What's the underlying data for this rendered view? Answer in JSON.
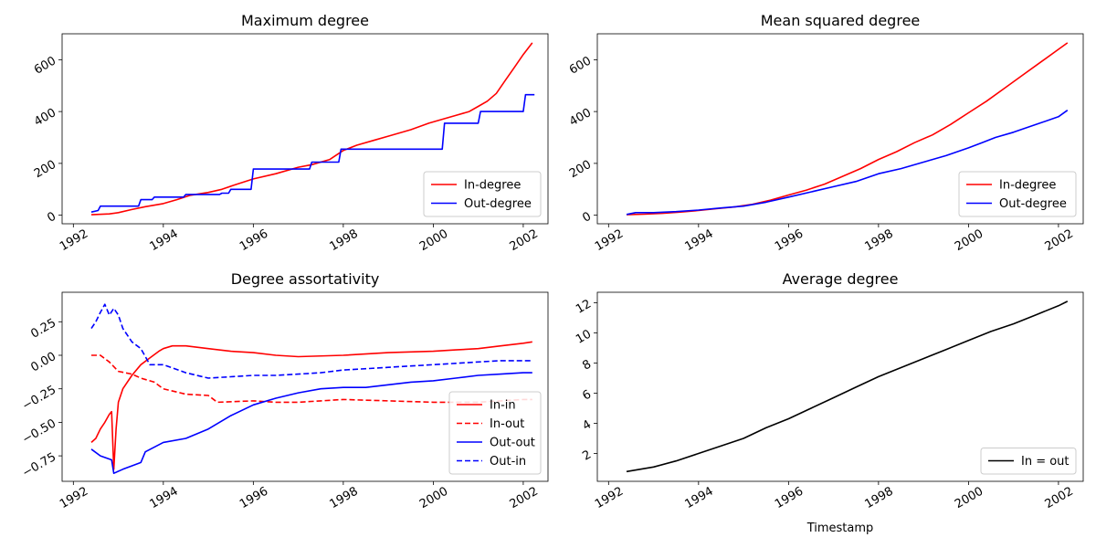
{
  "colors": {
    "red": "#ff0000",
    "blue": "#0000ff",
    "black": "#000000",
    "axis": "#000000"
  },
  "chart_data": [
    {
      "type": "line",
      "title": "Maximum degree",
      "xlabel": "",
      "ylabel": "",
      "xlim": [
        1991.75,
        2002.55
      ],
      "ylim": [
        -33,
        700
      ],
      "xticks": [
        1992,
        1994,
        1996,
        1998,
        2000,
        2002
      ],
      "yticks": [
        0,
        200,
        400,
        600
      ],
      "ytick_labels": [
        "0",
        "200",
        "400",
        "600"
      ],
      "legend": "lower-right",
      "series": [
        {
          "name": "In-degree",
          "color": "#ff0000",
          "dash": "solid",
          "points": [
            [
              1992.4,
              2
            ],
            [
              1992.8,
              5
            ],
            [
              1993.0,
              10
            ],
            [
              1993.3,
              22
            ],
            [
              1993.6,
              33
            ],
            [
              1994.0,
              45
            ],
            [
              1994.3,
              60
            ],
            [
              1994.6,
              77
            ],
            [
              1995.0,
              88
            ],
            [
              1995.3,
              100
            ],
            [
              1995.6,
              118
            ],
            [
              1996.0,
              140
            ],
            [
              1996.5,
              160
            ],
            [
              1997.0,
              185
            ],
            [
              1997.3,
              195
            ],
            [
              1997.7,
              215
            ],
            [
              1998.0,
              250
            ],
            [
              1998.3,
              270
            ],
            [
              1998.7,
              290
            ],
            [
              1999.0,
              305
            ],
            [
              1999.5,
              330
            ],
            [
              1999.9,
              355
            ],
            [
              2000.2,
              370
            ],
            [
              2000.5,
              385
            ],
            [
              2000.8,
              400
            ],
            [
              2001.0,
              420
            ],
            [
              2001.2,
              440
            ],
            [
              2001.4,
              470
            ],
            [
              2001.6,
              520
            ],
            [
              2001.8,
              570
            ],
            [
              2002.0,
              620
            ],
            [
              2002.2,
              665
            ]
          ]
        },
        {
          "name": "Out-degree",
          "color": "#0000ff",
          "dash": "solid",
          "points": [
            [
              1992.4,
              12
            ],
            [
              1992.55,
              18
            ],
            [
              1992.6,
              35
            ],
            [
              1993.45,
              35
            ],
            [
              1993.5,
              60
            ],
            [
              1993.75,
              60
            ],
            [
              1993.8,
              70
            ],
            [
              1994.45,
              70
            ],
            [
              1994.5,
              80
            ],
            [
              1995.25,
              80
            ],
            [
              1995.3,
              85
            ],
            [
              1995.45,
              85
            ],
            [
              1995.5,
              100
            ],
            [
              1995.95,
              100
            ],
            [
              1996.0,
              178
            ],
            [
              1997.25,
              178
            ],
            [
              1997.3,
              205
            ],
            [
              1997.9,
              205
            ],
            [
              1997.95,
              255
            ],
            [
              2000.2,
              255
            ],
            [
              2000.25,
              355
            ],
            [
              2001.0,
              355
            ],
            [
              2001.05,
              400
            ],
            [
              2002.0,
              400
            ],
            [
              2002.05,
              465
            ],
            [
              2002.25,
              465
            ]
          ]
        }
      ]
    },
    {
      "type": "line",
      "title": "Mean squared degree",
      "xlabel": "",
      "ylabel": "",
      "xlim": [
        1991.75,
        2002.55
      ],
      "ylim": [
        -33,
        700
      ],
      "xticks": [
        1992,
        1994,
        1996,
        1998,
        2000,
        2002
      ],
      "yticks": [
        0,
        200,
        400,
        600
      ],
      "ytick_labels": [
        "0",
        "200",
        "400",
        "600"
      ],
      "legend": "lower-right",
      "series": [
        {
          "name": "In-degree",
          "color": "#ff0000",
          "dash": "solid",
          "points": [
            [
              1992.4,
              2
            ],
            [
              1992.8,
              4
            ],
            [
              1993.2,
              7
            ],
            [
              1993.6,
              12
            ],
            [
              1994.0,
              18
            ],
            [
              1994.4,
              25
            ],
            [
              1994.8,
              32
            ],
            [
              1995.2,
              42
            ],
            [
              1995.6,
              58
            ],
            [
              1996.0,
              78
            ],
            [
              1996.4,
              97
            ],
            [
              1996.8,
              120
            ],
            [
              1997.2,
              150
            ],
            [
              1997.6,
              180
            ],
            [
              1998.0,
              215
            ],
            [
              1998.4,
              245
            ],
            [
              1998.8,
              280
            ],
            [
              1999.2,
              310
            ],
            [
              1999.6,
              350
            ],
            [
              2000.0,
              395
            ],
            [
              2000.4,
              440
            ],
            [
              2000.8,
              490
            ],
            [
              2001.2,
              540
            ],
            [
              2001.6,
              590
            ],
            [
              2002.0,
              640
            ],
            [
              2002.2,
              665
            ]
          ]
        },
        {
          "name": "Out-degree",
          "color": "#0000ff",
          "dash": "solid",
          "points": [
            [
              1992.4,
              3
            ],
            [
              1992.6,
              10
            ],
            [
              1993.0,
              10
            ],
            [
              1993.5,
              14
            ],
            [
              1994.0,
              20
            ],
            [
              1994.5,
              28
            ],
            [
              1995.0,
              35
            ],
            [
              1995.5,
              50
            ],
            [
              1996.0,
              70
            ],
            [
              1996.5,
              90
            ],
            [
              1997.0,
              110
            ],
            [
              1997.5,
              130
            ],
            [
              1998.0,
              160
            ],
            [
              1998.5,
              180
            ],
            [
              1999.0,
              205
            ],
            [
              1999.5,
              230
            ],
            [
              2000.0,
              260
            ],
            [
              2000.3,
              280
            ],
            [
              2000.6,
              300
            ],
            [
              2001.0,
              320
            ],
            [
              2001.5,
              350
            ],
            [
              2002.0,
              380
            ],
            [
              2002.2,
              405
            ]
          ]
        }
      ]
    },
    {
      "type": "line",
      "title": "Degree assortativity",
      "xlabel": "",
      "ylabel": "",
      "xlim": [
        1991.75,
        2002.55
      ],
      "ylim": [
        -0.94,
        0.47
      ],
      "xticks": [
        1992,
        1994,
        1996,
        1998,
        2000,
        2002
      ],
      "yticks": [
        0.25,
        0.0,
        -0.25,
        -0.5,
        -0.75
      ],
      "ytick_labels": [
        "0.25",
        "0.00",
        "−0.25",
        "−0.50",
        "−0.75"
      ],
      "legend": "lower-right",
      "series": [
        {
          "name": "In-in",
          "color": "#ff0000",
          "dash": "solid",
          "points": [
            [
              1992.4,
              -0.65
            ],
            [
              1992.5,
              -0.62
            ],
            [
              1992.6,
              -0.55
            ],
            [
              1992.7,
              -0.5
            ],
            [
              1992.8,
              -0.44
            ],
            [
              1992.85,
              -0.42
            ],
            [
              1992.9,
              -0.85
            ],
            [
              1992.95,
              -0.55
            ],
            [
              1993.0,
              -0.35
            ],
            [
              1993.1,
              -0.25
            ],
            [
              1993.3,
              -0.15
            ],
            [
              1993.5,
              -0.07
            ],
            [
              1993.7,
              -0.02
            ],
            [
              1993.9,
              0.03
            ],
            [
              1994.0,
              0.05
            ],
            [
              1994.2,
              0.07
            ],
            [
              1994.5,
              0.07
            ],
            [
              1995.0,
              0.05
            ],
            [
              1995.5,
              0.03
            ],
            [
              1996.0,
              0.02
            ],
            [
              1996.5,
              0.0
            ],
            [
              1997.0,
              -0.01
            ],
            [
              1998.0,
              0.0
            ],
            [
              1999.0,
              0.02
            ],
            [
              2000.0,
              0.03
            ],
            [
              2000.5,
              0.04
            ],
            [
              2001.0,
              0.05
            ],
            [
              2001.5,
              0.07
            ],
            [
              2002.0,
              0.09
            ],
            [
              2002.2,
              0.1
            ]
          ]
        },
        {
          "name": "In-out",
          "color": "#ff0000",
          "dash": "dashed",
          "points": [
            [
              1992.4,
              0.0
            ],
            [
              1992.6,
              0.0
            ],
            [
              1992.8,
              -0.05
            ],
            [
              1993.0,
              -0.12
            ],
            [
              1993.3,
              -0.14
            ],
            [
              1993.5,
              -0.17
            ],
            [
              1993.8,
              -0.2
            ],
            [
              1994.0,
              -0.25
            ],
            [
              1994.5,
              -0.29
            ],
            [
              1995.0,
              -0.3
            ],
            [
              1995.2,
              -0.35
            ],
            [
              1996.0,
              -0.34
            ],
            [
              1996.5,
              -0.35
            ],
            [
              1997.0,
              -0.35
            ],
            [
              1997.5,
              -0.34
            ],
            [
              1998.0,
              -0.33
            ],
            [
              1999.0,
              -0.34
            ],
            [
              2000.0,
              -0.35
            ],
            [
              2001.0,
              -0.35
            ],
            [
              2001.5,
              -0.34
            ],
            [
              2002.0,
              -0.33
            ],
            [
              2002.2,
              -0.33
            ]
          ]
        },
        {
          "name": "Out-out",
          "color": "#0000ff",
          "dash": "solid",
          "points": [
            [
              1992.4,
              -0.7
            ],
            [
              1992.6,
              -0.75
            ],
            [
              1992.85,
              -0.78
            ],
            [
              1992.9,
              -0.88
            ],
            [
              1993.1,
              -0.85
            ],
            [
              1993.5,
              -0.8
            ],
            [
              1993.6,
              -0.72
            ],
            [
              1994.0,
              -0.65
            ],
            [
              1994.5,
              -0.62
            ],
            [
              1995.0,
              -0.55
            ],
            [
              1995.5,
              -0.45
            ],
            [
              1996.0,
              -0.37
            ],
            [
              1996.5,
              -0.32
            ],
            [
              1997.0,
              -0.28
            ],
            [
              1997.5,
              -0.25
            ],
            [
              1998.0,
              -0.24
            ],
            [
              1998.5,
              -0.24
            ],
            [
              1999.0,
              -0.22
            ],
            [
              1999.5,
              -0.2
            ],
            [
              2000.0,
              -0.19
            ],
            [
              2000.5,
              -0.17
            ],
            [
              2001.0,
              -0.15
            ],
            [
              2001.5,
              -0.14
            ],
            [
              2002.0,
              -0.13
            ],
            [
              2002.2,
              -0.13
            ]
          ]
        },
        {
          "name": "Out-in",
          "color": "#0000ff",
          "dash": "dashed",
          "points": [
            [
              1992.4,
              0.2
            ],
            [
              1992.5,
              0.25
            ],
            [
              1992.6,
              0.32
            ],
            [
              1992.7,
              0.38
            ],
            [
              1992.8,
              0.3
            ],
            [
              1992.9,
              0.35
            ],
            [
              1993.0,
              0.3
            ],
            [
              1993.1,
              0.2
            ],
            [
              1993.3,
              0.1
            ],
            [
              1993.5,
              0.05
            ],
            [
              1993.7,
              -0.07
            ],
            [
              1994.0,
              -0.07
            ],
            [
              1994.5,
              -0.13
            ],
            [
              1995.0,
              -0.17
            ],
            [
              1995.5,
              -0.16
            ],
            [
              1996.0,
              -0.15
            ],
            [
              1996.5,
              -0.15
            ],
            [
              1997.0,
              -0.14
            ],
            [
              1997.5,
              -0.13
            ],
            [
              1998.0,
              -0.11
            ],
            [
              1998.5,
              -0.1
            ],
            [
              1999.0,
              -0.09
            ],
            [
              1999.5,
              -0.08
            ],
            [
              2000.0,
              -0.07
            ],
            [
              2000.5,
              -0.06
            ],
            [
              2001.0,
              -0.05
            ],
            [
              2001.5,
              -0.04
            ],
            [
              2002.0,
              -0.04
            ],
            [
              2002.2,
              -0.04
            ]
          ]
        }
      ]
    },
    {
      "type": "line",
      "title": "Average degree",
      "xlabel": "Timestamp",
      "ylabel": "",
      "xlim": [
        1991.75,
        2002.55
      ],
      "ylim": [
        0.15,
        12.7
      ],
      "xticks": [
        1992,
        1994,
        1996,
        1998,
        2000,
        2002
      ],
      "yticks": [
        2,
        4,
        6,
        8,
        10,
        12
      ],
      "ytick_labels": [
        "2",
        "4",
        "6",
        "8",
        "10",
        "12"
      ],
      "legend": "lower-right",
      "series": [
        {
          "name": "In = out",
          "color": "#000000",
          "dash": "solid",
          "points": [
            [
              1992.4,
              0.8
            ],
            [
              1993.0,
              1.1
            ],
            [
              1993.5,
              1.5
            ],
            [
              1994.0,
              2.0
            ],
            [
              1994.5,
              2.5
            ],
            [
              1995.0,
              3.0
            ],
            [
              1995.5,
              3.7
            ],
            [
              1996.0,
              4.3
            ],
            [
              1996.5,
              5.0
            ],
            [
              1997.0,
              5.7
            ],
            [
              1997.5,
              6.4
            ],
            [
              1998.0,
              7.1
            ],
            [
              1998.5,
              7.7
            ],
            [
              1999.0,
              8.3
            ],
            [
              1999.5,
              8.9
            ],
            [
              2000.0,
              9.5
            ],
            [
              2000.5,
              10.1
            ],
            [
              2001.0,
              10.6
            ],
            [
              2001.5,
              11.2
            ],
            [
              2002.0,
              11.8
            ],
            [
              2002.2,
              12.1
            ]
          ]
        }
      ]
    }
  ]
}
